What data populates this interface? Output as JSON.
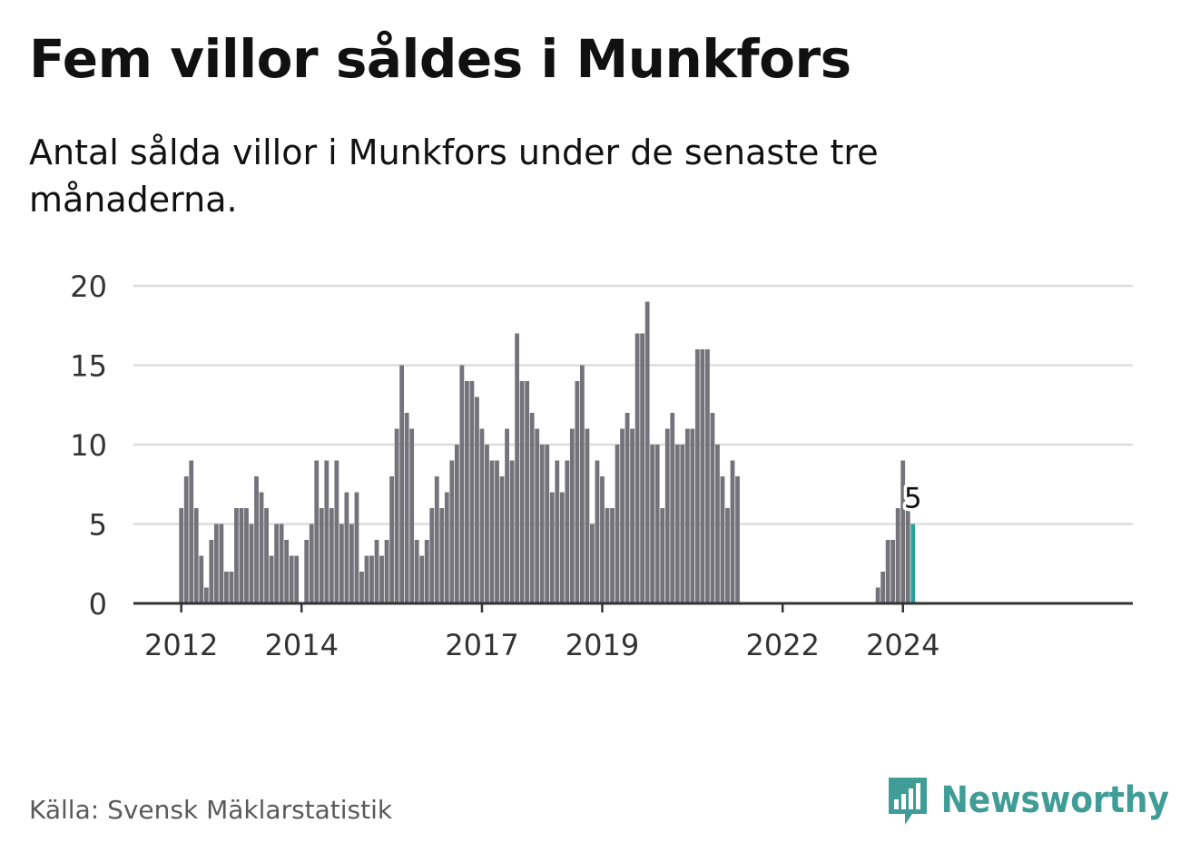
{
  "title": "Fem villor såldes i Munkfors",
  "subtitle": "Antal sålda villor i Munkfors under de senaste tre månaderna.",
  "source": "Källa: Svensk Mäklarstatistik",
  "brand": "Newsworthy",
  "colors": {
    "bar": "#74737a",
    "highlight": "#2aa198",
    "grid": "#dddddd",
    "axis": "#333333",
    "brand": "#3f9c96"
  },
  "chart_data": {
    "type": "bar",
    "start_year": 2012,
    "start_month": 1,
    "period": "month",
    "ylim": [
      0,
      20
    ],
    "yticks": [
      0,
      5,
      10,
      15,
      20
    ],
    "xticks": [
      "2012",
      "2014",
      "2017",
      "2019",
      "2022",
      "2024"
    ],
    "values": [
      6,
      8,
      9,
      6,
      3,
      1,
      4,
      5,
      5,
      2,
      2,
      6,
      6,
      6,
      5,
      8,
      7,
      6,
      3,
      5,
      5,
      4,
      3,
      3,
      0,
      4,
      5,
      9,
      6,
      9,
      6,
      9,
      5,
      7,
      5,
      7,
      2,
      3,
      3,
      4,
      3,
      4,
      8,
      11,
      15,
      12,
      11,
      4,
      3,
      4,
      6,
      8,
      6,
      7,
      9,
      10,
      15,
      14,
      14,
      13,
      11,
      10,
      9,
      9,
      8,
      11,
      9,
      17,
      14,
      14,
      12,
      11,
      10,
      10,
      7,
      9,
      7,
      9,
      11,
      14,
      15,
      11,
      5,
      9,
      8,
      6,
      6,
      10,
      11,
      12,
      11,
      17,
      17,
      19,
      10,
      10,
      6,
      11,
      12,
      10,
      10,
      11,
      11,
      16,
      16,
      16,
      12,
      10,
      8,
      6,
      9,
      8,
      0,
      0,
      0,
      0,
      0,
      0,
      0,
      0,
      0,
      0,
      0,
      0,
      0,
      0,
      0,
      0,
      0,
      0,
      0,
      0,
      0,
      0,
      0,
      0,
      0,
      0,
      0,
      1,
      2,
      4,
      4,
      6,
      9,
      6,
      5
    ],
    "highlight_label": "5"
  }
}
